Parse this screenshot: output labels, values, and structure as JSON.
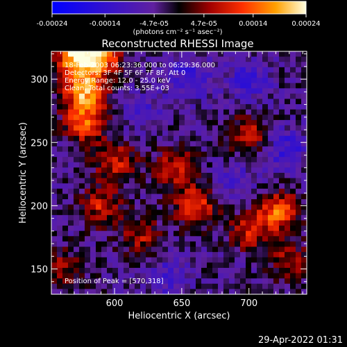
{
  "chart_data": {
    "type": "heatmap",
    "title": "Reconstructed RHESSI Image",
    "xlabel": "Heliocentric X (arcsec)",
    "ylabel": "Heliocentric Y (arcsec)",
    "xlim": [
      553,
      743
    ],
    "ylim": [
      130,
      322
    ],
    "x_ticks": [
      {
        "value": 600,
        "label": "600"
      },
      {
        "value": 650,
        "label": "650"
      },
      {
        "value": 700,
        "label": "700"
      }
    ],
    "y_ticks": [
      {
        "value": 150,
        "label": "150"
      },
      {
        "value": 200,
        "label": "200"
      },
      {
        "value": 250,
        "label": "250"
      },
      {
        "value": 300,
        "label": "300"
      }
    ],
    "colorbar": {
      "min": -0.00024,
      "max": 0.00024,
      "tick_labels": [
        "-0.00024",
        "-0.00014",
        "-4.7e-05",
        "4.7e-05",
        "0.00014",
        "0.00024"
      ],
      "tick_values": [
        -0.00024,
        -0.00014,
        -4.7e-05,
        4.7e-05,
        0.00014,
        0.00024
      ],
      "unit_label": "(photons cm⁻² s⁻¹ asec⁻²)"
    },
    "info_lines": [
      "18-Feb-2003 06:23:36.000 to 06:29:36.000",
      "Detectors: 3F 4F 5F 6F 7F 8F, Att 0",
      "Energy Range: 12.0 - 25.0 keV",
      "Clean. Total counts: 3.55E+03"
    ],
    "peak_label": "Position of Peak = [570,318]",
    "peak_position": [
      570,
      318
    ],
    "bright_regions": [
      {
        "x": 578,
        "y": 290,
        "intensity": 0.00022
      },
      {
        "x": 578,
        "y": 265,
        "intensity": 0.00016
      },
      {
        "x": 572,
        "y": 318,
        "intensity": 0.00024
      },
      {
        "x": 600,
        "y": 235,
        "intensity": 0.00013
      },
      {
        "x": 590,
        "y": 200,
        "intensity": 0.00012
      },
      {
        "x": 620,
        "y": 175,
        "intensity": 0.0001
      },
      {
        "x": 645,
        "y": 230,
        "intensity": 0.00012
      },
      {
        "x": 660,
        "y": 200,
        "intensity": 0.00015
      },
      {
        "x": 700,
        "y": 255,
        "intensity": 0.00012
      },
      {
        "x": 722,
        "y": 195,
        "intensity": 0.00018
      },
      {
        "x": 700,
        "y": 180,
        "intensity": 0.00011
      },
      {
        "x": 730,
        "y": 155,
        "intensity": 0.0001
      },
      {
        "x": 560,
        "y": 150,
        "intensity": 9e-05
      },
      {
        "x": 590,
        "y": 318,
        "intensity": 0.00018
      }
    ],
    "dark_regions": [
      {
        "x": 655,
        "y": 300,
        "intensity": -0.0001
      },
      {
        "x": 700,
        "y": 300,
        "intensity": -9e-05
      },
      {
        "x": 727,
        "y": 245,
        "intensity": -0.0001
      },
      {
        "x": 640,
        "y": 145,
        "intensity": -7e-05
      },
      {
        "x": 620,
        "y": 275,
        "intensity": -6e-05
      },
      {
        "x": 690,
        "y": 220,
        "intensity": -6e-05
      }
    ]
  },
  "footer": {
    "timestamp": "29-Apr-2022 01:31"
  }
}
